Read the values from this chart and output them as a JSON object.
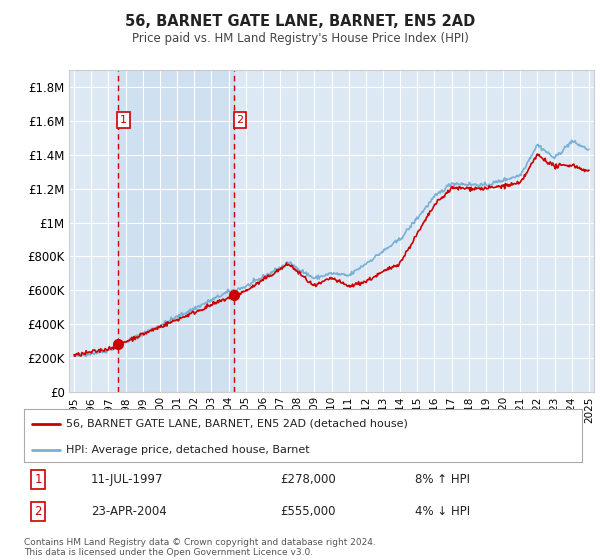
{
  "title": "56, BARNET GATE LANE, BARNET, EN5 2AD",
  "subtitle": "Price paid vs. HM Land Registry's House Price Index (HPI)",
  "background_color": "#ffffff",
  "plot_bg_color": "#dce9f5",
  "shaded_region_color": "#c8dff0",
  "grid_color": "#ffffff",
  "hpi_line_color": "#7ab0d4",
  "price_line_color": "#cc0000",
  "sale1_date_x": 1997.53,
  "sale2_date_x": 2004.31,
  "legend1": "56, BARNET GATE LANE, BARNET, EN5 2AD (detached house)",
  "legend2": "HPI: Average price, detached house, Barnet",
  "footnote": "Contains HM Land Registry data © Crown copyright and database right 2024.\nThis data is licensed under the Open Government Licence v3.0.",
  "ylim": [
    0,
    1900000
  ],
  "xlim_start": 1994.7,
  "xlim_end": 2025.3,
  "yticks": [
    0,
    200000,
    400000,
    600000,
    800000,
    1000000,
    1200000,
    1400000,
    1600000,
    1800000
  ],
  "ytick_labels": [
    "£0",
    "£200K",
    "£400K",
    "£600K",
    "£800K",
    "£1M",
    "£1.2M",
    "£1.4M",
    "£1.6M",
    "£1.8M"
  ]
}
